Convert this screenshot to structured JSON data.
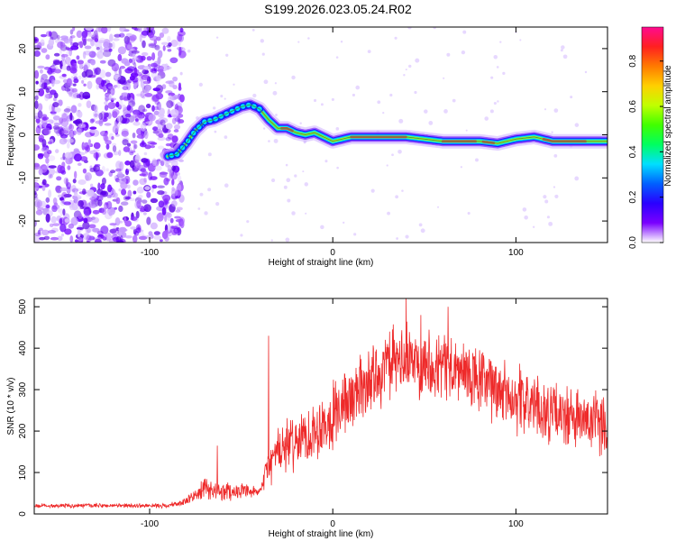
{
  "title": "S199.2026.023.05.24.R02",
  "chart_data": [
    {
      "type": "heatmap",
      "xlabel": "Height of straight line (km)",
      "ylabel": "Frequency (Hz)",
      "xlim": [
        -163,
        150
      ],
      "ylim": [
        -25,
        25
      ],
      "xticks": [
        -100,
        0,
        100
      ],
      "yticks": [
        -20,
        -10,
        0,
        10,
        20
      ],
      "ridge_x": [
        -90,
        -85,
        -80,
        -75,
        -70,
        -65,
        -60,
        -55,
        -50,
        -45,
        -40,
        -35,
        -30,
        -25,
        -20,
        -15,
        -10,
        -5,
        0,
        5,
        10,
        15,
        20,
        30,
        40,
        50,
        60,
        70,
        80,
        90,
        100,
        110,
        120,
        130,
        140,
        150
      ],
      "ridge_y": [
        -5,
        -4.5,
        -2,
        1,
        3,
        3.5,
        4.5,
        5.5,
        6.5,
        7,
        6,
        3.5,
        1.5,
        1.5,
        0.5,
        0,
        0.5,
        -0.5,
        -1.5,
        -1,
        -0.5,
        -0.5,
        -0.5,
        -0.5,
        -0.5,
        -1,
        -1.5,
        -1.5,
        -1.5,
        -2,
        -1,
        -0.5,
        -1.5,
        -1.5,
        -1.5,
        -1.5
      ],
      "noise_region_x": [
        -163,
        -82
      ],
      "colorbar": {
        "label": "Normalized spectral amplitude",
        "range": [
          0,
          0.95
        ],
        "ticks": [
          "0.0",
          "0.2",
          "0.4",
          "0.6",
          "0.8"
        ],
        "tick_values": [
          0,
          0.2,
          0.4,
          0.6,
          0.8
        ],
        "colors": [
          "#ffffff",
          "#7a00ff",
          "#2a00ff",
          "#0060ff",
          "#00dfff",
          "#00ff60",
          "#40ff00",
          "#c0ff00",
          "#ffd000",
          "#ff7a00",
          "#ff2020",
          "#ff0a90"
        ]
      },
      "line_color": "#2fa84f"
    },
    {
      "type": "line",
      "xlabel": "Height of straight line (km)",
      "ylabel": "SNR (10 * v/v)",
      "xlim": [
        -163,
        150
      ],
      "ylim": [
        0,
        520
      ],
      "xticks": [
        -100,
        0,
        100
      ],
      "yticks": [
        0,
        100,
        200,
        300,
        400,
        500
      ],
      "color": "#ee2a2a",
      "envelope_x": [
        -163,
        -90,
        -80,
        -70,
        -60,
        -50,
        -40,
        -35,
        -30,
        -20,
        -10,
        0,
        10,
        20,
        30,
        40,
        50,
        60,
        70,
        80,
        90,
        100,
        110,
        120,
        130,
        140,
        150
      ],
      "envelope_mean": [
        20,
        20,
        30,
        60,
        55,
        55,
        50,
        120,
        150,
        175,
        200,
        240,
        280,
        320,
        360,
        370,
        370,
        360,
        340,
        320,
        300,
        280,
        260,
        240,
        230,
        220,
        210
      ],
      "envelope_amplitude": [
        6,
        6,
        12,
        30,
        30,
        20,
        15,
        60,
        70,
        80,
        90,
        100,
        100,
        100,
        100,
        100,
        100,
        100,
        100,
        100,
        100,
        100,
        90,
        90,
        90,
        90,
        90
      ],
      "spikes": [
        [
          -35,
          430
        ],
        [
          -63,
          165
        ],
        [
          40,
          520
        ],
        [
          48,
          480
        ],
        [
          63,
          500
        ]
      ],
      "annotation_ylabel_note": ""
    }
  ]
}
